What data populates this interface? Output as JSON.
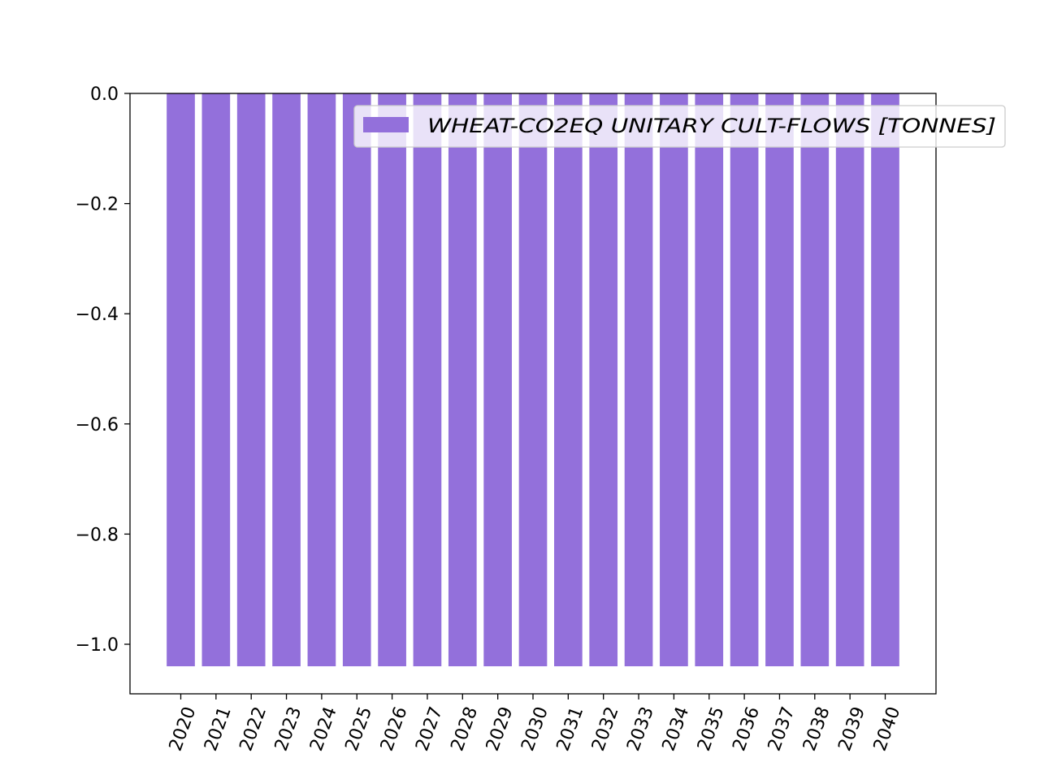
{
  "chart_data": {
    "type": "bar",
    "title": "",
    "xlabel": "",
    "ylabel": "",
    "categories": [
      "2020",
      "2021",
      "2022",
      "2023",
      "2024",
      "2025",
      "2026",
      "2027",
      "2028",
      "2029",
      "2030",
      "2031",
      "2032",
      "2033",
      "2034",
      "2035",
      "2036",
      "2037",
      "2038",
      "2039",
      "2040"
    ],
    "series": [
      {
        "name": "WHEAT-CO2EQ UNITARY CULT-FLOWS [TONNES]",
        "values": [
          -1.04,
          -1.04,
          -1.04,
          -1.04,
          -1.04,
          -1.04,
          -1.04,
          -1.04,
          -1.04,
          -1.04,
          -1.04,
          -1.04,
          -1.04,
          -1.04,
          -1.04,
          -1.04,
          -1.04,
          -1.04,
          -1.04,
          -1.04,
          -1.04
        ],
        "color": "#9370db"
      }
    ],
    "ylim": [
      -1.09,
      0.0
    ],
    "yticks": [
      {
        "value": 0.0,
        "label": "0.0"
      },
      {
        "value": -0.2,
        "label": "−0.2"
      },
      {
        "value": -0.4,
        "label": "−0.4"
      },
      {
        "value": -0.6,
        "label": "−0.6"
      },
      {
        "value": -0.8,
        "label": "−0.8"
      },
      {
        "value": -1.0,
        "label": "−1.0"
      }
    ],
    "x_tick_rotation": 70,
    "grid": false,
    "legend": {
      "position": "top-right"
    }
  }
}
